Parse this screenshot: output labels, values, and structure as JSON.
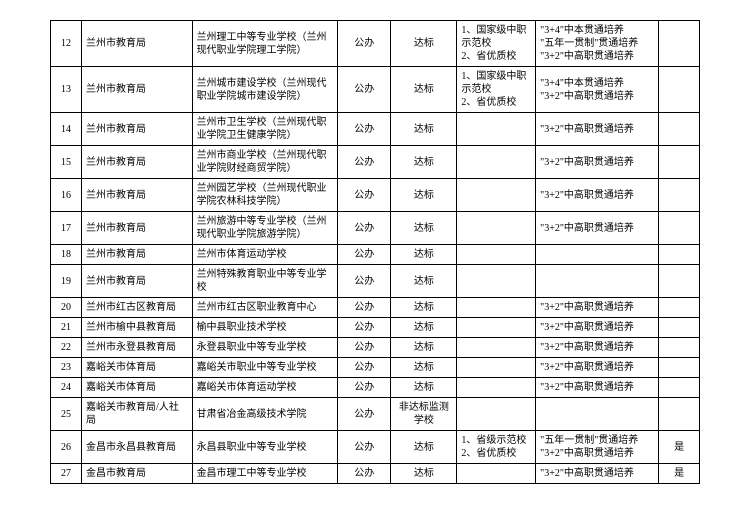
{
  "rows": [
    {
      "n": "12",
      "a": "兰州市教育局",
      "b": "兰州理工中等专业学校（兰州现代职业学院理工学院）",
      "c": "公办",
      "d": "达标",
      "e": "1、国家级中职示范校\n2、省优质校",
      "f": "\"3+4\"中本贯通培养\n\"五年一贯制\"贯通培养\n\"3+2\"中高职贯通培养",
      "g": ""
    },
    {
      "n": "13",
      "a": "兰州市教育局",
      "b": "兰州城市建设学校（兰州现代职业学院城市建设学院）",
      "c": "公办",
      "d": "达标",
      "e": "1、国家级中职示范校\n2、省优质校",
      "f": "\"3+4\"中本贯通培养\n\"3+2\"中高职贯通培养",
      "g": ""
    },
    {
      "n": "14",
      "a": "兰州市教育局",
      "b": "兰州市卫生学校（兰州现代职业学院卫生健康学院）",
      "c": "公办",
      "d": "达标",
      "e": "",
      "f": "\"3+2\"中高职贯通培养",
      "g": ""
    },
    {
      "n": "15",
      "a": "兰州市教育局",
      "b": "兰州市商业学校（兰州现代职业学院财经商贸学院）",
      "c": "公办",
      "d": "达标",
      "e": "",
      "f": "\"3+2\"中高职贯通培养",
      "g": ""
    },
    {
      "n": "16",
      "a": "兰州市教育局",
      "b": "兰州园艺学校（兰州现代职业学院农林科技学院）",
      "c": "公办",
      "d": "达标",
      "e": "",
      "f": "\"3+2\"中高职贯通培养",
      "g": ""
    },
    {
      "n": "17",
      "a": "兰州市教育局",
      "b": "兰州旅游中等专业学校（兰州现代职业学院旅游学院）",
      "c": "公办",
      "d": "达标",
      "e": "",
      "f": "\"3+2\"中高职贯通培养",
      "g": ""
    },
    {
      "n": "18",
      "a": "兰州市教育局",
      "b": "兰州市体育运动学校",
      "c": "公办",
      "d": "达标",
      "e": "",
      "f": "",
      "g": ""
    },
    {
      "n": "19",
      "a": "兰州市教育局",
      "b": "兰州特殊教育职业中等专业学校",
      "c": "公办",
      "d": "达标",
      "e": "",
      "f": "",
      "g": ""
    },
    {
      "n": "20",
      "a": "兰州市红古区教育局",
      "b": "兰州市红古区职业教育中心",
      "c": "公办",
      "d": "达标",
      "e": "",
      "f": "\"3+2\"中高职贯通培养",
      "g": ""
    },
    {
      "n": "21",
      "a": "兰州市榆中县教育局",
      "b": "榆中县职业技术学校",
      "c": "公办",
      "d": "达标",
      "e": "",
      "f": "\"3+2\"中高职贯通培养",
      "g": ""
    },
    {
      "n": "22",
      "a": "兰州市永登县教育局",
      "b": "永登县职业中等专业学校",
      "c": "公办",
      "d": "达标",
      "e": "",
      "f": "\"3+2\"中高职贯通培养",
      "g": ""
    },
    {
      "n": "23",
      "a": "嘉峪关市体育局",
      "b": "嘉峪关市职业中等专业学校",
      "c": "公办",
      "d": "达标",
      "e": "",
      "f": "\"3+2\"中高职贯通培养",
      "g": ""
    },
    {
      "n": "24",
      "a": "嘉峪关市体育局",
      "b": "嘉峪关市体育运动学校",
      "c": "公办",
      "d": "达标",
      "e": "",
      "f": "\"3+2\"中高职贯通培养",
      "g": ""
    },
    {
      "n": "25",
      "a": "嘉峪关市教育局/人社局",
      "b": "甘肃省冶金高级技术学院",
      "c": "公办",
      "d": "非达标监测学校",
      "e": "",
      "f": "",
      "g": ""
    },
    {
      "n": "26",
      "a": "金昌市永昌县教育局",
      "b": "永昌县职业中等专业学校",
      "c": "公办",
      "d": "达标",
      "e": "1、省级示范校\n2、省优质校",
      "f": "\"五年一贯制\"贯通培养\n\"3+2\"中高职贯通培养",
      "g": "是"
    },
    {
      "n": "27",
      "a": "金昌市教育局",
      "b": "金昌市理工中等专业学校",
      "c": "公办",
      "d": "达标",
      "e": "",
      "f": "\"3+2\"中高职贯通培养",
      "g": "是"
    }
  ]
}
